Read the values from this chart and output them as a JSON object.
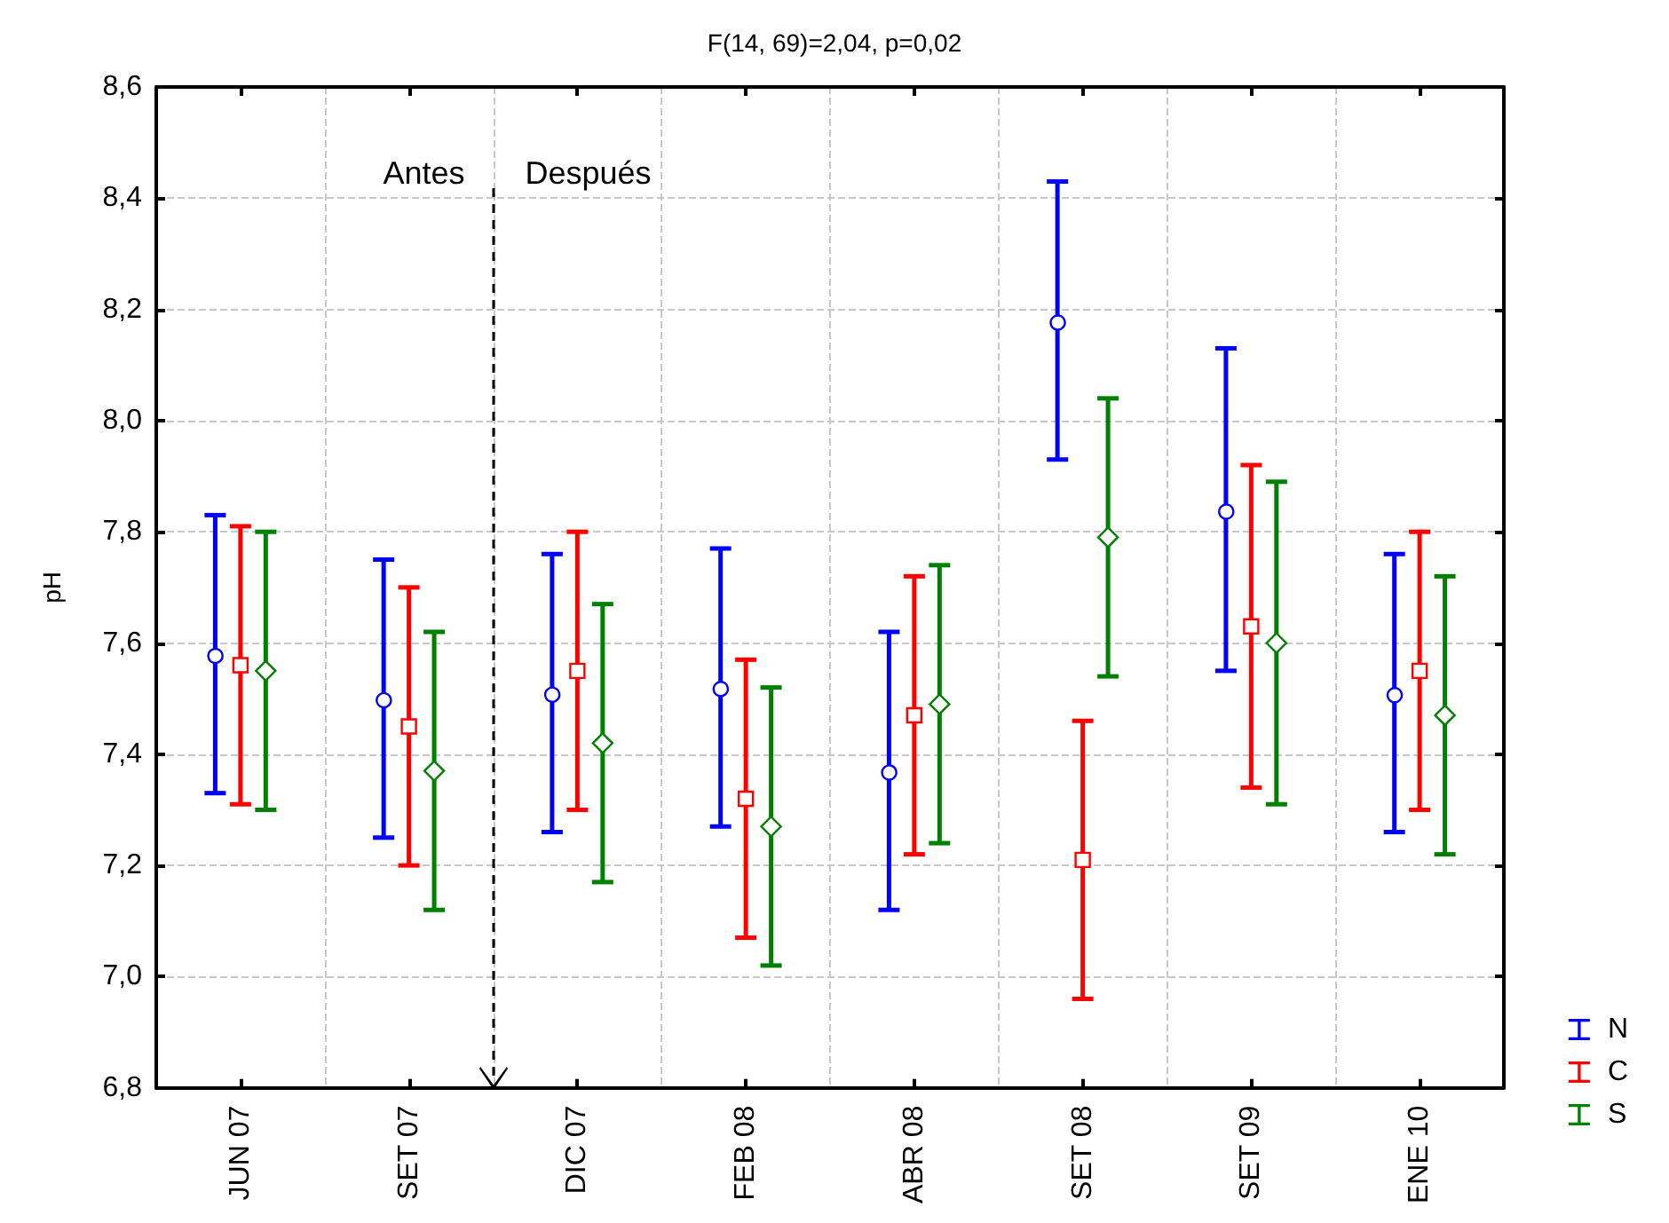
{
  "chart_data": {
    "type": "scatter",
    "title": "F(14, 69)=2,04, p=0,02",
    "ylabel": "pH",
    "categories": [
      "JUN 07",
      "SET 07",
      "DIC 07",
      "FEB 08",
      "ABR 08",
      "SET 08",
      "SET 09",
      "ENE 10"
    ],
    "series": [
      {
        "name": "N",
        "color": "#0000ff",
        "marker": "circle",
        "values": [
          7.58,
          7.5,
          7.51,
          7.52,
          7.37,
          8.18,
          7.84,
          7.51
        ],
        "errors": [
          0.25,
          0.25,
          0.25,
          0.25,
          0.25,
          0.25,
          0.29,
          0.25
        ]
      },
      {
        "name": "C",
        "color": "#ff0000",
        "marker": "square",
        "values": [
          7.56,
          7.45,
          7.55,
          7.32,
          7.47,
          7.21,
          7.63,
          7.55
        ],
        "errors": [
          0.25,
          0.25,
          0.25,
          0.25,
          0.25,
          0.25,
          0.29,
          0.25
        ]
      },
      {
        "name": "S",
        "color": "#008000",
        "marker": "diamond",
        "values": [
          7.55,
          7.37,
          7.42,
          7.27,
          7.49,
          7.79,
          7.6,
          7.47
        ],
        "errors": [
          0.25,
          0.25,
          0.25,
          0.25,
          0.25,
          0.25,
          0.29,
          0.25
        ]
      }
    ],
    "ylim": [
      6.8,
      8.6
    ],
    "yticks": [
      {
        "value": 6.8,
        "label": "6,8"
      },
      {
        "value": 7.0,
        "label": "7,0"
      },
      {
        "value": 7.2,
        "label": "7,2"
      },
      {
        "value": 7.4,
        "label": "7,4"
      },
      {
        "value": 7.6,
        "label": "7,6"
      },
      {
        "value": 7.8,
        "label": "7,8"
      },
      {
        "value": 8.0,
        "label": "8,0"
      },
      {
        "value": 8.2,
        "label": "8,2"
      },
      {
        "value": 8.4,
        "label": "8,4"
      },
      {
        "value": 8.6,
        "label": "8,6"
      }
    ],
    "annotations": [
      "Antes",
      "Después"
    ],
    "grid": true,
    "legend": "bottom right"
  }
}
